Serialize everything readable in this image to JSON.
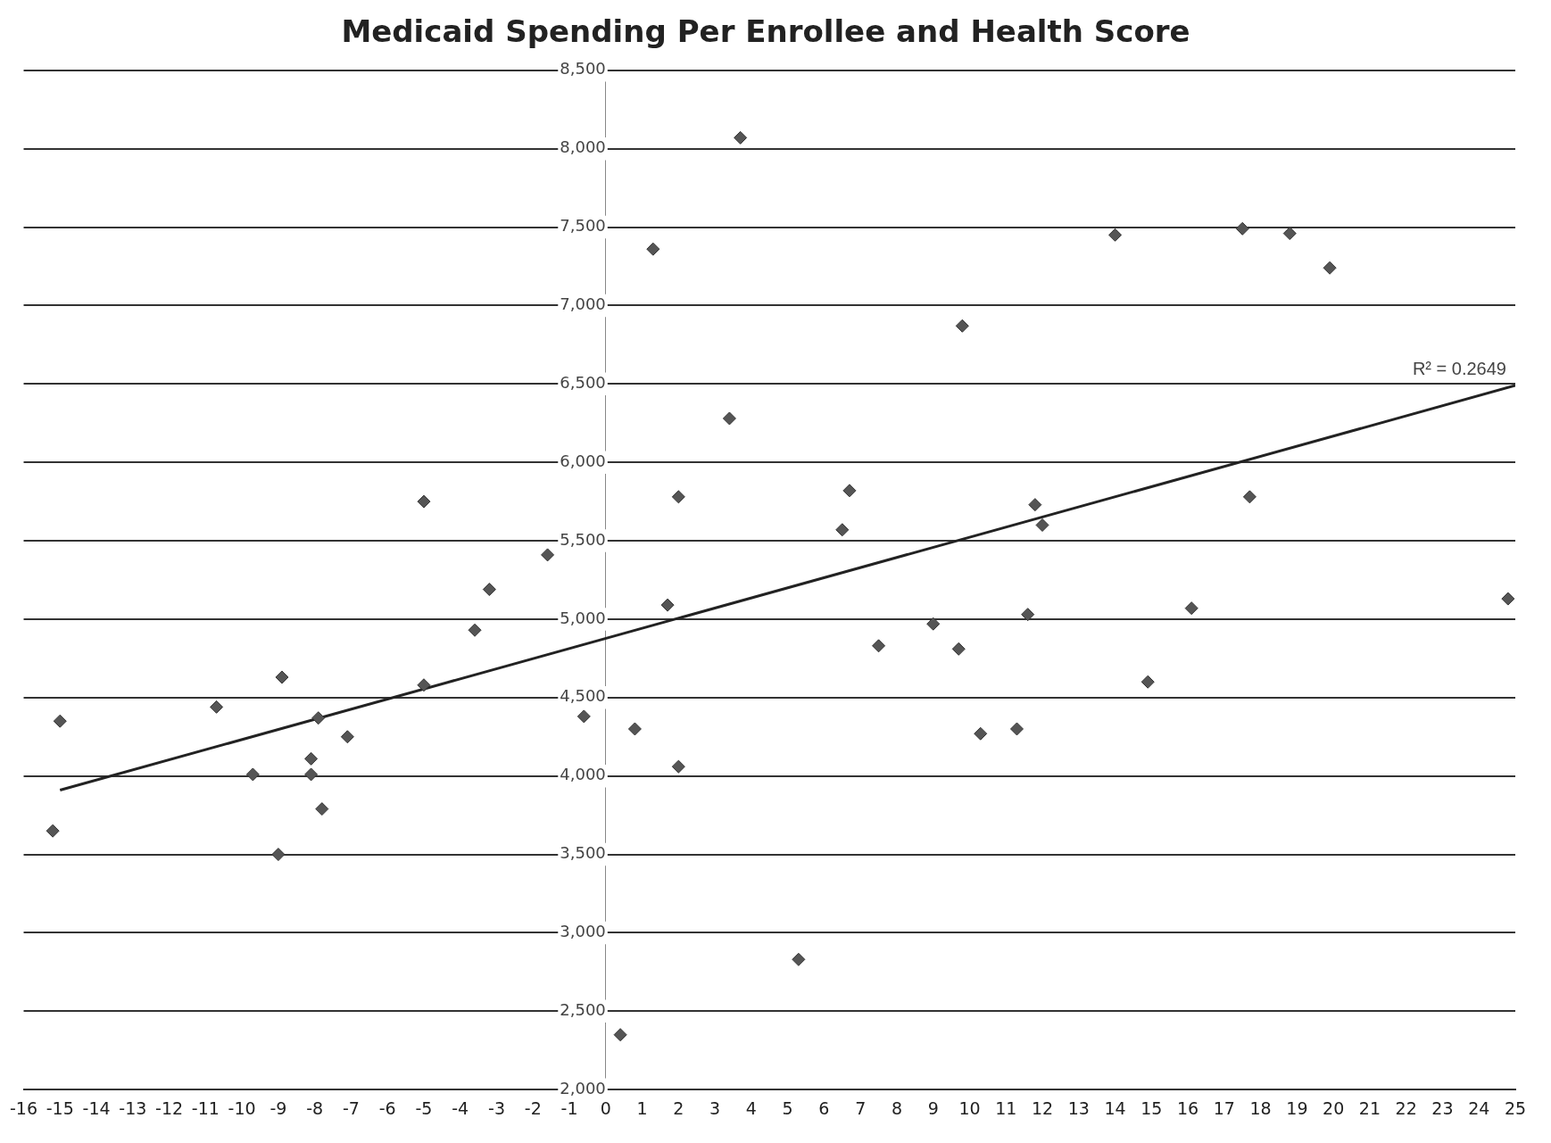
{
  "chart_data": {
    "type": "scatter",
    "title": "Medicaid Spending Per Enrollee and Health Score",
    "xlim": [
      -16,
      25
    ],
    "xticks": [
      -16,
      -15,
      -14,
      -13,
      -12,
      -11,
      -10,
      -9,
      -8,
      -7,
      -6,
      -5,
      -4,
      -3,
      -2,
      -1,
      0,
      1,
      2,
      3,
      4,
      5,
      6,
      7,
      8,
      9,
      10,
      11,
      12,
      13,
      14,
      15,
      16,
      17,
      18,
      19,
      20,
      21,
      22,
      23,
      24,
      25
    ],
    "ylim": [
      2000,
      8500
    ],
    "yticks": [
      {
        "value": 2000,
        "label": "2,000"
      },
      {
        "value": 2500,
        "label": "2,500"
      },
      {
        "value": 3000,
        "label": "3,000"
      },
      {
        "value": 3500,
        "label": "3,500"
      },
      {
        "value": 4000,
        "label": "4,000"
      },
      {
        "value": 4500,
        "label": "4,500"
      },
      {
        "value": 5000,
        "label": "5,000"
      },
      {
        "value": 5500,
        "label": "5,500"
      },
      {
        "value": 6000,
        "label": "6,000"
      },
      {
        "value": 6500,
        "label": "6,500"
      },
      {
        "value": 7000,
        "label": "7,000"
      },
      {
        "value": 7500,
        "label": "7,500"
      },
      {
        "value": 8000,
        "label": "8,000"
      },
      {
        "value": 8500,
        "label": "8,500"
      }
    ],
    "grid": "y",
    "legend": false,
    "marker": "diamond",
    "series": [
      {
        "color": "#555555",
        "x": [
          -15.2,
          -15,
          -10.7,
          -9.7,
          -8.9,
          -9,
          -8.1,
          -8.1,
          -7.9,
          -7.8,
          -7.1,
          -5,
          -5,
          -3.6,
          -3.2,
          -1.6,
          -0.6,
          0.4,
          0.8,
          1.3,
          1.7,
          2,
          2,
          3.4,
          3.7,
          5.3,
          6.5,
          6.7,
          7.5,
          9,
          9.7,
          9.8,
          10.3,
          11.3,
          11.6,
          11.8,
          12,
          14,
          14.9,
          16.1,
          17.5,
          17.7,
          18.8,
          19.9,
          24.8
        ],
        "values": [
          3650,
          4350,
          4440,
          4010,
          4630,
          3500,
          4110,
          4010,
          4370,
          3790,
          4250,
          5750,
          4580,
          4930,
          5190,
          5410,
          4380,
          2350,
          4300,
          7360,
          5090,
          5780,
          4060,
          6280,
          8070,
          2830,
          5570,
          5820,
          4830,
          4970,
          4810,
          6870,
          4270,
          4300,
          5030,
          5730,
          5600,
          7450,
          4600,
          5070,
          7490,
          5780,
          7460,
          7240,
          5130
        ]
      },
      {
        "type": "line",
        "color": "#222222",
        "marker": "none",
        "line_style": "solid",
        "x": [
          -15,
          25
        ],
        "values": [
          3910,
          6490
        ]
      }
    ],
    "annotations": [
      "R² = 0.2649"
    ]
  }
}
